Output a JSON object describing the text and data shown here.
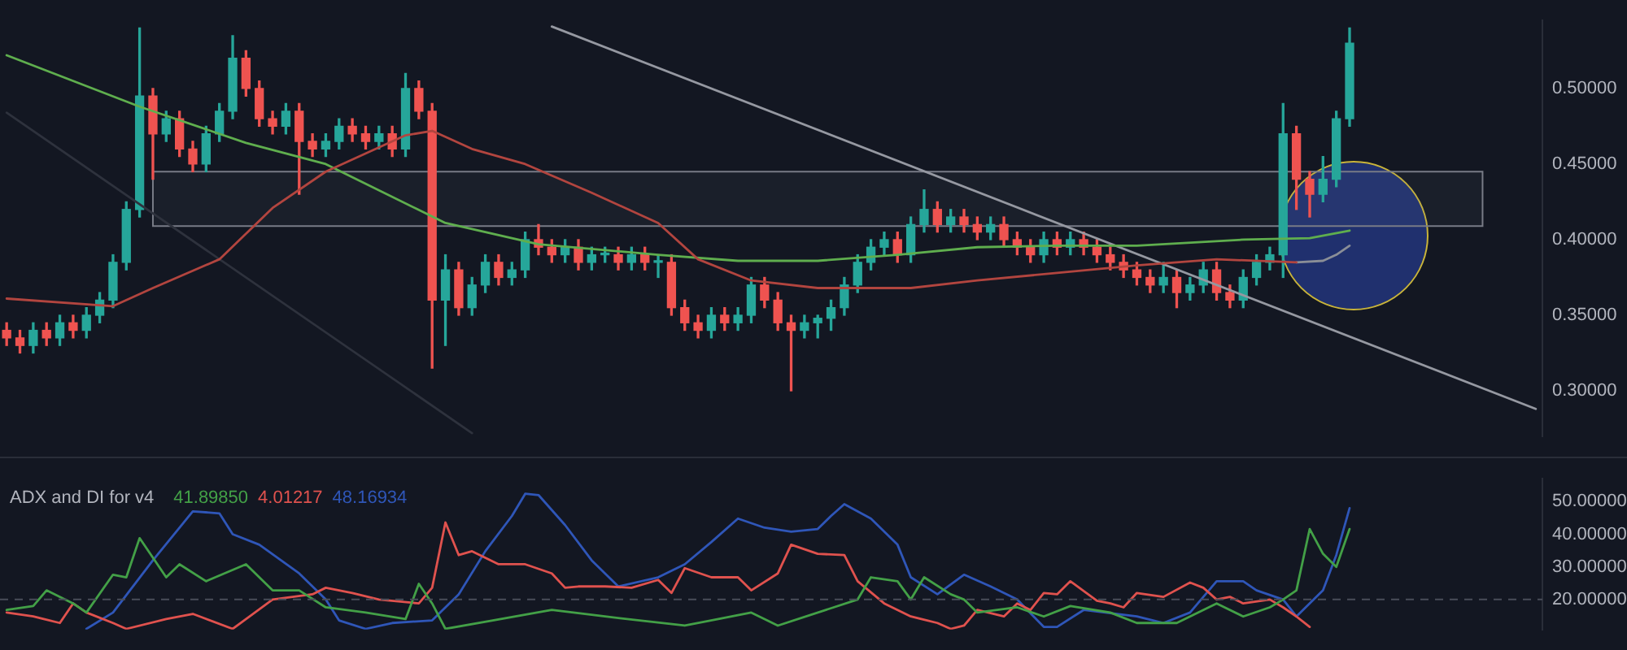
{
  "chart_data": [
    {
      "type": "candlestick",
      "tick_labels": "y",
      "ylim": [
        0.27,
        0.545
      ],
      "yticks": [
        {
          "value": 0.3,
          "label": "0.30000"
        },
        {
          "value": 0.35,
          "label": "0.35000"
        },
        {
          "value": 0.4,
          "label": "0.40000"
        },
        {
          "value": 0.45,
          "label": "0.45000"
        },
        {
          "value": 0.5,
          "label": "0.50000"
        }
      ],
      "categories": [
        null,
        null,
        null,
        null,
        null,
        null,
        null,
        null,
        null,
        null,
        null,
        null,
        null,
        null,
        null,
        null,
        null,
        null,
        null,
        null,
        null,
        null,
        null,
        null,
        null,
        null,
        null,
        null,
        null,
        null,
        null,
        null,
        null,
        null,
        null,
        null,
        null,
        null,
        null,
        null,
        null,
        null,
        null,
        null,
        null,
        null,
        null,
        null,
        null,
        null,
        null,
        null,
        null,
        null,
        null,
        null,
        null,
        null,
        null,
        null,
        null,
        null,
        null,
        null,
        null,
        null,
        null,
        null,
        null,
        null,
        null,
        null,
        null,
        null,
        null,
        null,
        null,
        null,
        null,
        null,
        null,
        null,
        null,
        null,
        null,
        null,
        null,
        null,
        null,
        null,
        null,
        null,
        null,
        null,
        null,
        null,
        null,
        null,
        null,
        null,
        null,
        null,
        null,
        null,
        null,
        null,
        null,
        null,
        null,
        null,
        null,
        null,
        null,
        null,
        null,
        null
      ],
      "ohlc": [
        [
          0.34,
          0.345,
          0.33,
          0.335
        ],
        [
          0.335,
          0.34,
          0.325,
          0.33
        ],
        [
          0.33,
          0.345,
          0.325,
          0.34
        ],
        [
          0.34,
          0.345,
          0.33,
          0.335
        ],
        [
          0.335,
          0.35,
          0.33,
          0.345
        ],
        [
          0.345,
          0.35,
          0.335,
          0.34
        ],
        [
          0.34,
          0.355,
          0.335,
          0.35
        ],
        [
          0.35,
          0.365,
          0.345,
          0.36
        ],
        [
          0.36,
          0.39,
          0.355,
          0.385
        ],
        [
          0.385,
          0.425,
          0.38,
          0.42
        ],
        [
          0.42,
          0.54,
          0.415,
          0.495
        ],
        [
          0.495,
          0.5,
          0.44,
          0.47
        ],
        [
          0.47,
          0.485,
          0.465,
          0.48
        ],
        [
          0.48,
          0.485,
          0.455,
          0.46
        ],
        [
          0.46,
          0.465,
          0.445,
          0.45
        ],
        [
          0.45,
          0.475,
          0.445,
          0.47
        ],
        [
          0.47,
          0.49,
          0.465,
          0.485
        ],
        [
          0.485,
          0.535,
          0.48,
          0.52
        ],
        [
          0.52,
          0.525,
          0.495,
          0.5
        ],
        [
          0.5,
          0.505,
          0.475,
          0.48
        ],
        [
          0.48,
          0.485,
          0.47,
          0.475
        ],
        [
          0.475,
          0.49,
          0.47,
          0.485
        ],
        [
          0.485,
          0.49,
          0.43,
          0.465
        ],
        [
          0.465,
          0.47,
          0.455,
          0.46
        ],
        [
          0.46,
          0.47,
          0.455,
          0.465
        ],
        [
          0.465,
          0.48,
          0.46,
          0.475
        ],
        [
          0.475,
          0.48,
          0.465,
          0.47
        ],
        [
          0.47,
          0.475,
          0.46,
          0.465
        ],
        [
          0.465,
          0.475,
          0.46,
          0.47
        ],
        [
          0.47,
          0.475,
          0.455,
          0.46
        ],
        [
          0.46,
          0.51,
          0.455,
          0.5
        ],
        [
          0.5,
          0.505,
          0.48,
          0.485
        ],
        [
          0.485,
          0.49,
          0.315,
          0.36
        ],
        [
          0.36,
          0.39,
          0.33,
          0.38
        ],
        [
          0.38,
          0.385,
          0.35,
          0.355
        ],
        [
          0.355,
          0.375,
          0.35,
          0.37
        ],
        [
          0.37,
          0.39,
          0.365,
          0.385
        ],
        [
          0.385,
          0.39,
          0.37,
          0.375
        ],
        [
          0.375,
          0.385,
          0.37,
          0.38
        ],
        [
          0.38,
          0.405,
          0.375,
          0.4
        ],
        [
          0.4,
          0.41,
          0.39,
          0.395
        ],
        [
          0.395,
          0.4,
          0.385,
          0.39
        ],
        [
          0.39,
          0.4,
          0.385,
          0.395
        ],
        [
          0.395,
          0.4,
          0.38,
          0.385
        ],
        [
          0.385,
          0.395,
          0.38,
          0.39
        ],
        [
          0.39,
          0.395,
          0.385,
          0.39
        ],
        [
          0.39,
          0.395,
          0.38,
          0.385
        ],
        [
          0.385,
          0.395,
          0.38,
          0.39
        ],
        [
          0.39,
          0.395,
          0.38,
          0.385
        ],
        [
          0.385,
          0.39,
          0.375,
          0.385
        ],
        [
          0.385,
          0.39,
          0.35,
          0.355
        ],
        [
          0.355,
          0.36,
          0.34,
          0.345
        ],
        [
          0.345,
          0.35,
          0.335,
          0.34
        ],
        [
          0.34,
          0.355,
          0.335,
          0.35
        ],
        [
          0.35,
          0.355,
          0.34,
          0.345
        ],
        [
          0.345,
          0.355,
          0.34,
          0.35
        ],
        [
          0.35,
          0.375,
          0.345,
          0.37
        ],
        [
          0.37,
          0.375,
          0.355,
          0.36
        ],
        [
          0.36,
          0.365,
          0.34,
          0.345
        ],
        [
          0.345,
          0.35,
          0.3,
          0.34
        ],
        [
          0.34,
          0.35,
          0.335,
          0.345
        ],
        [
          0.345,
          0.35,
          0.335,
          0.348
        ],
        [
          0.348,
          0.36,
          0.34,
          0.355
        ],
        [
          0.355,
          0.375,
          0.35,
          0.37
        ],
        [
          0.37,
          0.39,
          0.365,
          0.385
        ],
        [
          0.385,
          0.4,
          0.38,
          0.395
        ],
        [
          0.395,
          0.405,
          0.39,
          0.4
        ],
        [
          0.4,
          0.405,
          0.385,
          0.39
        ],
        [
          0.39,
          0.415,
          0.385,
          0.41
        ],
        [
          0.41,
          0.433,
          0.405,
          0.42
        ],
        [
          0.42,
          0.425,
          0.405,
          0.41
        ],
        [
          0.41,
          0.42,
          0.405,
          0.415
        ],
        [
          0.415,
          0.42,
          0.405,
          0.41
        ],
        [
          0.41,
          0.415,
          0.4,
          0.405
        ],
        [
          0.405,
          0.415,
          0.4,
          0.41
        ],
        [
          0.41,
          0.415,
          0.395,
          0.4
        ],
        [
          0.4,
          0.405,
          0.39,
          0.395
        ],
        [
          0.395,
          0.4,
          0.385,
          0.39
        ],
        [
          0.39,
          0.405,
          0.385,
          0.4
        ],
        [
          0.4,
          0.405,
          0.39,
          0.395
        ],
        [
          0.395,
          0.405,
          0.39,
          0.4
        ],
        [
          0.4,
          0.405,
          0.39,
          0.395
        ],
        [
          0.395,
          0.4,
          0.385,
          0.39
        ],
        [
          0.39,
          0.395,
          0.38,
          0.385
        ],
        [
          0.385,
          0.39,
          0.375,
          0.38
        ],
        [
          0.38,
          0.385,
          0.37,
          0.375
        ],
        [
          0.375,
          0.38,
          0.365,
          0.37
        ],
        [
          0.37,
          0.385,
          0.365,
          0.375
        ],
        [
          0.375,
          0.38,
          0.355,
          0.365
        ],
        [
          0.365,
          0.375,
          0.36,
          0.37
        ],
        [
          0.37,
          0.385,
          0.365,
          0.38
        ],
        [
          0.38,
          0.385,
          0.36,
          0.365
        ],
        [
          0.365,
          0.37,
          0.355,
          0.36
        ],
        [
          0.36,
          0.38,
          0.355,
          0.375
        ],
        [
          0.375,
          0.39,
          0.37,
          0.385
        ],
        [
          0.385,
          0.395,
          0.38,
          0.39
        ],
        [
          0.39,
          0.49,
          0.375,
          0.47
        ],
        [
          0.47,
          0.475,
          0.42,
          0.44
        ],
        [
          0.44,
          0.445,
          0.415,
          0.43
        ],
        [
          0.43,
          0.455,
          0.425,
          0.44
        ],
        [
          0.44,
          0.485,
          0.435,
          0.48
        ],
        [
          0.48,
          0.54,
          0.475,
          0.53
        ],
        null,
        null,
        null,
        null,
        null,
        null,
        null,
        null,
        null,
        null,
        null,
        null,
        null,
        null
      ],
      "bands": [
        {
          "axis": "y",
          "from": 0.409,
          "to": 0.445,
          "color": "#787b86"
        }
      ],
      "series": [
        {
          "type": "line",
          "color": "#b2453f",
          "values": [
            0.361,
            null,
            null,
            null,
            null,
            null,
            null,
            null,
            0.356,
            null,
            null,
            0.368,
            null,
            null,
            null,
            null,
            0.387,
            null,
            null,
            null,
            0.421,
            null,
            null,
            null,
            0.445,
            null,
            null,
            null,
            null,
            null,
            0.469,
            null,
            0.472,
            null,
            null,
            0.46,
            null,
            null,
            null,
            0.45,
            null,
            null,
            null,
            null,
            0.431,
            null,
            null,
            null,
            null,
            0.411,
            null,
            null,
            0.387,
            null,
            null,
            null,
            0.373,
            null,
            null,
            null,
            null,
            0.368,
            null,
            null,
            null,
            null,
            null,
            null,
            0.368,
            null,
            null,
            null,
            null,
            0.373,
            null,
            null,
            null,
            null,
            null,
            0.378,
            null,
            null,
            null,
            null,
            null,
            0.383,
            null,
            null,
            null,
            null,
            null,
            0.387,
            null,
            null,
            null,
            null,
            null,
            0.385,
            null,
            null,
            null,
            null,
            null,
            null,
            null,
            null,
            null,
            null,
            null,
            null,
            null,
            null,
            null,
            null,
            null,
            null
          ]
        },
        {
          "type": "line",
          "color": "#8a8e97",
          "values": [
            null,
            null,
            null,
            null,
            null,
            null,
            null,
            null,
            null,
            null,
            null,
            null,
            null,
            null,
            null,
            null,
            null,
            null,
            null,
            null,
            null,
            null,
            null,
            null,
            null,
            null,
            null,
            null,
            null,
            null,
            null,
            null,
            null,
            null,
            null,
            null,
            null,
            null,
            null,
            null,
            null,
            null,
            null,
            null,
            null,
            null,
            null,
            null,
            null,
            null,
            null,
            null,
            null,
            null,
            null,
            null,
            null,
            null,
            null,
            null,
            null,
            null,
            null,
            null,
            null,
            null,
            null,
            null,
            null,
            null,
            null,
            null,
            null,
            null,
            null,
            null,
            null,
            null,
            null,
            null,
            null,
            null,
            null,
            null,
            null,
            null,
            null,
            null,
            null,
            null,
            null,
            null,
            null,
            null,
            null,
            null,
            null,
            0.385,
            null,
            0.386,
            0.39,
            0.396,
            null,
            null,
            null,
            null,
            null,
            null,
            null,
            null,
            null,
            null,
            null,
            null,
            null,
            null
          ]
        },
        {
          "type": "line",
          "color": "#5fae4e",
          "values": [
            0.522,
            null,
            null,
            null,
            null,
            null,
            null,
            null,
            null,
            null,
            0.488,
            null,
            null,
            null,
            null,
            null,
            null,
            null,
            0.464,
            null,
            null,
            null,
            null,
            null,
            0.45,
            null,
            null,
            null,
            null,
            null,
            null,
            null,
            null,
            0.411,
            null,
            null,
            null,
            null,
            null,
            null,
            0.397,
            null,
            null,
            null,
            null,
            null,
            null,
            null,
            null,
            0.39,
            null,
            null,
            null,
            null,
            null,
            0.386,
            null,
            null,
            null,
            null,
            null,
            0.386,
            null,
            null,
            null,
            null,
            null,
            0.39,
            null,
            null,
            null,
            null,
            null,
            0.395,
            null,
            null,
            null,
            null,
            null,
            0.396,
            null,
            null,
            null,
            null,
            null,
            0.396,
            null,
            null,
            null,
            null,
            null,
            null,
            null,
            0.4,
            null,
            null,
            null,
            null,
            0.401,
            null,
            null,
            0.406,
            null,
            null,
            null,
            null,
            null,
            null,
            null,
            null,
            null,
            null,
            null,
            null,
            null,
            null
          ]
        },
        {
          "type": "line",
          "color": "#9598a1",
          "values": [
            null,
            null,
            null,
            null,
            null,
            null,
            null,
            null,
            null,
            null,
            null,
            null,
            null,
            null,
            null,
            null,
            null,
            null,
            null,
            null,
            null,
            null,
            null,
            null,
            null,
            null,
            null,
            null,
            null,
            null,
            null,
            null,
            null,
            null,
            null,
            null,
            null,
            null,
            null,
            null,
            null,
            0.541,
            null,
            null,
            null,
            null,
            null,
            null,
            null,
            null,
            null,
            null,
            null,
            null,
            null,
            null,
            null,
            null,
            null,
            null,
            null,
            null,
            null,
            null,
            null,
            null,
            null,
            null,
            null,
            null,
            null,
            null,
            null,
            null,
            null,
            null,
            null,
            null,
            null,
            null,
            null,
            null,
            null,
            null,
            null,
            null,
            null,
            null,
            null,
            null,
            null,
            null,
            null,
            null,
            null,
            null,
            null,
            null,
            null,
            null,
            null,
            null,
            null,
            null,
            null,
            null,
            null,
            null,
            null,
            null,
            null,
            null,
            null,
            null,
            null,
            0.288
          ]
        },
        {
          "type": "line",
          "color": "#2e323d",
          "values": [
            0.484,
            null,
            null,
            null,
            null,
            null,
            null,
            null,
            null,
            null,
            null,
            null,
            null,
            null,
            null,
            null,
            null,
            null,
            null,
            null,
            null,
            null,
            null,
            null,
            null,
            null,
            null,
            null,
            null,
            null,
            null,
            null,
            null,
            null,
            null,
            0.272,
            null,
            null,
            null,
            null,
            null,
            null,
            null,
            null,
            null,
            null,
            null,
            null,
            null,
            null,
            null,
            null,
            null,
            null,
            null,
            null,
            null,
            null,
            null,
            null,
            null,
            null,
            null,
            null,
            null,
            null,
            null,
            null,
            null,
            null,
            null,
            null,
            null,
            null,
            null,
            null,
            null,
            null,
            null,
            null,
            null,
            null,
            null,
            null,
            null,
            null,
            null,
            null,
            null,
            null,
            null,
            null,
            null,
            null,
            null,
            null,
            null,
            null,
            null,
            null,
            null,
            null,
            null,
            null,
            null,
            null,
            null,
            null,
            null,
            null,
            null,
            null,
            null,
            null,
            null,
            null
          ]
        }
      ]
    },
    {
      "type": "line",
      "title": "ADX and DI for v4",
      "annotations": [
        "41.89850",
        "4.01217",
        "48.16934"
      ],
      "tick_labels": "y",
      "ylim": [
        10.8,
        57
      ],
      "yticks": [
        {
          "value": 20,
          "label": "20.00000"
        },
        {
          "value": 30,
          "label": "30.00000"
        },
        {
          "value": 40,
          "label": "40.00000"
        },
        {
          "value": 50,
          "label": "50.00000"
        }
      ],
      "ref_lines": [
        {
          "axis": "y",
          "value": 20,
          "color": "#4a4e59",
          "line_style": "dashed"
        }
      ],
      "categories": [
        null,
        null,
        null,
        null,
        null,
        null,
        null,
        null,
        null,
        null,
        null,
        null,
        null,
        null,
        null,
        null,
        null,
        null,
        null,
        null,
        null,
        null,
        null,
        null,
        null,
        null,
        null,
        null,
        null,
        null,
        null,
        null,
        null,
        null,
        null,
        null,
        null,
        null,
        null,
        null,
        null,
        null,
        null,
        null,
        null,
        null,
        null,
        null,
        null,
        null,
        null,
        null,
        null,
        null,
        null,
        null,
        null,
        null,
        null,
        null,
        null,
        null,
        null,
        null,
        null,
        null,
        null,
        null,
        null,
        null,
        null,
        null,
        null,
        null,
        null,
        null,
        null,
        null,
        null,
        null,
        null,
        null,
        null,
        null,
        null,
        null,
        null,
        null,
        null,
        null,
        null,
        null,
        null,
        null,
        null,
        null,
        null,
        null,
        null,
        null,
        null,
        null,
        null,
        null,
        null,
        null,
        null,
        null,
        null,
        null,
        null,
        null,
        null,
        null,
        null,
        null
      ],
      "series": [
        {
          "color": "#43a047",
          "values": [
            16.8,
            null,
            18,
            22.8,
            null,
            18.8,
            16,
            null,
            27.6,
            26.8,
            38.8,
            null,
            26.8,
            30.8,
            null,
            25.6,
            null,
            null,
            30.8,
            null,
            22.8,
            null,
            22.8,
            null,
            17.6,
            null,
            null,
            16,
            null,
            null,
            14,
            24.8,
            18.8,
            11,
            null,
            null,
            null,
            null,
            null,
            null,
            null,
            16.8,
            null,
            null,
            null,
            14.8,
            null,
            null,
            null,
            null,
            null,
            12,
            null,
            null,
            null,
            null,
            16,
            null,
            12,
            null,
            null,
            null,
            null,
            null,
            20,
            26.8,
            null,
            25.6,
            20,
            26.8,
            null,
            21.6,
            20,
            16,
            null,
            null,
            17.6,
            null,
            14.8,
            null,
            18,
            null,
            null,
            16,
            null,
            12.8,
            null,
            null,
            12.8,
            null,
            null,
            18.8,
            null,
            14.8,
            null,
            17.6,
            20,
            22.8,
            41.6,
            34,
            30,
            41.6,
            null,
            null,
            null,
            null,
            null,
            null,
            null,
            null,
            null,
            null,
            null,
            null,
            null,
            null
          ]
        },
        {
          "color": "#e0524e",
          "values": [
            16,
            null,
            14.8,
            null,
            12.8,
            18.8,
            16,
            null,
            12.8,
            11,
            null,
            null,
            14,
            null,
            15.6,
            null,
            null,
            11,
            null,
            null,
            20,
            null,
            null,
            21.6,
            23.6,
            null,
            22,
            null,
            20,
            null,
            null,
            18.8,
            23.6,
            43.6,
            33.6,
            34.8,
            null,
            30.8,
            null,
            30.8,
            null,
            28,
            23.6,
            24,
            null,
            24,
            null,
            23.6,
            null,
            26,
            22,
            29.6,
            null,
            26.8,
            null,
            26.8,
            22.8,
            null,
            28,
            36.8,
            null,
            34,
            null,
            33.6,
            25.6,
            null,
            18.8,
            null,
            14.8,
            null,
            12.8,
            11,
            12,
            16.8,
            null,
            14.8,
            18.8,
            16.8,
            22,
            21.6,
            25.6,
            null,
            19.6,
            18.8,
            17.6,
            22,
            null,
            20.8,
            null,
            25.2,
            23.6,
            20,
            20.8,
            18.8,
            null,
            20,
            17.6,
            14.8,
            11.6,
            null,
            null,
            null,
            null,
            null,
            null,
            null,
            null,
            null,
            null,
            null,
            null,
            null,
            null,
            null,
            null,
            null
          ]
        },
        {
          "color": "#2f56b8",
          "values": [
            null,
            null,
            null,
            null,
            null,
            null,
            11,
            null,
            16,
            null,
            null,
            32,
            null,
            null,
            47,
            null,
            46.4,
            40,
            null,
            36.8,
            null,
            null,
            28,
            null,
            20,
            13.6,
            null,
            11,
            null,
            12.8,
            null,
            null,
            13.6,
            null,
            21.6,
            null,
            34.8,
            null,
            45.6,
            52.4,
            52,
            null,
            42.8,
            null,
            32,
            null,
            24,
            null,
            null,
            26.8,
            null,
            30.8,
            null,
            37.6,
            null,
            44.8,
            null,
            42,
            null,
            40.8,
            null,
            41.6,
            45.6,
            49.2,
            null,
            44.8,
            null,
            36.8,
            26.8,
            null,
            21.6,
            null,
            27.6,
            null,
            24,
            null,
            20,
            null,
            11.6,
            11.6,
            null,
            16.8,
            null,
            null,
            null,
            14.8,
            null,
            12.8,
            null,
            16,
            null,
            25.6,
            null,
            25.6,
            22.8,
            null,
            20,
            14.8,
            null,
            22.8,
            33.6,
            48,
            null,
            null,
            null,
            null,
            null,
            null,
            null,
            null,
            null,
            null,
            null,
            null,
            null,
            null
          ]
        }
      ]
    }
  ]
}
